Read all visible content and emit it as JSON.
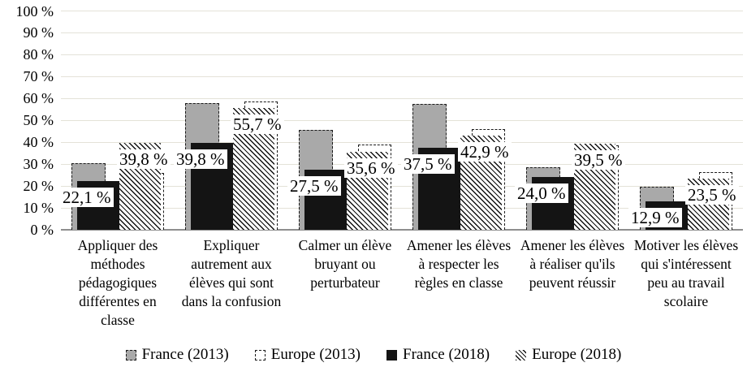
{
  "chart_data": {
    "type": "bar",
    "title": "",
    "xlabel": "",
    "ylabel": "",
    "ylim": [
      0,
      100
    ],
    "y_tick_step": 10,
    "y_tick_labels": [
      "100 %",
      "90 %",
      "80 %",
      "70 %",
      "60 %",
      "50 %",
      "40 %",
      "30 %",
      "20 %",
      "10 %",
      "0 %"
    ],
    "grid": true,
    "legend_position": "bottom",
    "categories": [
      "Appliquer des méthodes pédagogiques différentes en classe",
      "Expliquer autrement aux élèves qui sont dans la confusion",
      "Calmer un élève bruyant ou perturbateur",
      "Amener les élèves à respecter les règles en classe",
      "Amener les élèves à réaliser qu'ils peuvent réussir",
      "Motiver les élèves qui s'intéressent peu au travail scolaire"
    ],
    "series": [
      {
        "name": "France (2013)",
        "style": "gray-fill-dashed-border",
        "values": [
          30.5,
          58.0,
          45.5,
          57.5,
          28.5,
          19.5
        ]
      },
      {
        "name": "Europe (2013)",
        "style": "white-fill-dashed-border",
        "values": [
          26.0,
          58.5,
          39.0,
          46.0,
          38.5,
          26.5
        ]
      },
      {
        "name": "France (2018)",
        "style": "solid-black",
        "values": [
          22.1,
          39.8,
          27.5,
          37.5,
          24.0,
          12.9
        ],
        "display_labels": [
          "22,1 %",
          "39,8 %",
          "27,5 %",
          "37,5 %",
          "24,0 %",
          "12,9 %"
        ]
      },
      {
        "name": "Europe (2018)",
        "style": "black-diagonal-hatch",
        "values": [
          39.8,
          55.7,
          35.6,
          42.9,
          39.5,
          23.5
        ],
        "display_labels": [
          "39,8 %",
          "55,7 %",
          "35,6 %",
          "42,9 %",
          "39,5 %",
          "23,5 %"
        ]
      }
    ],
    "colors": {
      "gray": "#a9a9a9",
      "black": "#141414",
      "gridline": "#e4e2d8",
      "axis": "#8e8e8e"
    }
  }
}
